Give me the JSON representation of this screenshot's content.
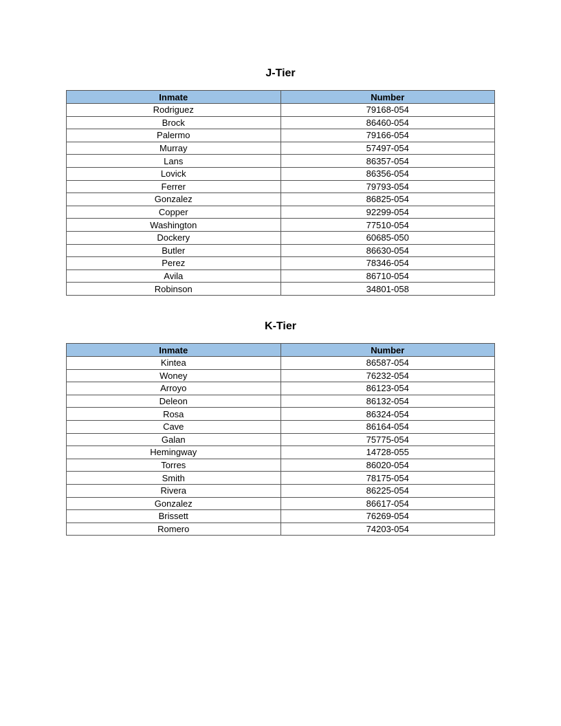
{
  "sections": [
    {
      "title": "J-Tier",
      "headers": [
        "Inmate",
        "Number"
      ],
      "rows": [
        [
          "Rodriguez",
          "79168-054"
        ],
        [
          "Brock",
          "86460-054"
        ],
        [
          "Palermo",
          "79166-054"
        ],
        [
          "Murray",
          "57497-054"
        ],
        [
          "Lans",
          "86357-054"
        ],
        [
          "Lovick",
          "86356-054"
        ],
        [
          "Ferrer",
          "79793-054"
        ],
        [
          "Gonzalez",
          "86825-054"
        ],
        [
          "Copper",
          "92299-054"
        ],
        [
          "Washington",
          "77510-054"
        ],
        [
          "Dockery",
          "60685-050"
        ],
        [
          "Butler",
          "86630-054"
        ],
        [
          "Perez",
          "78346-054"
        ],
        [
          "Avila",
          "86710-054"
        ],
        [
          "Robinson",
          "34801-058"
        ]
      ]
    },
    {
      "title": "K-Tier",
      "headers": [
        "Inmate",
        "Number"
      ],
      "rows": [
        [
          "Kintea",
          "86587-054"
        ],
        [
          "Woney",
          "76232-054"
        ],
        [
          "Arroyo",
          "86123-054"
        ],
        [
          "Deleon",
          "86132-054"
        ],
        [
          "Rosa",
          "86324-054"
        ],
        [
          "Cave",
          "86164-054"
        ],
        [
          "Galan",
          "75775-054"
        ],
        [
          "Hemingway",
          "14728-055"
        ],
        [
          "Torres",
          "86020-054"
        ],
        [
          "Smith",
          "78175-054"
        ],
        [
          "Rivera",
          "86225-054"
        ],
        [
          "Gonzalez",
          "86617-054"
        ],
        [
          "Brissett",
          "76269-054"
        ],
        [
          "Romero",
          "74203-054"
        ]
      ]
    }
  ],
  "colors": {
    "header_fill": "#9dc3e6",
    "border": "#555555"
  }
}
